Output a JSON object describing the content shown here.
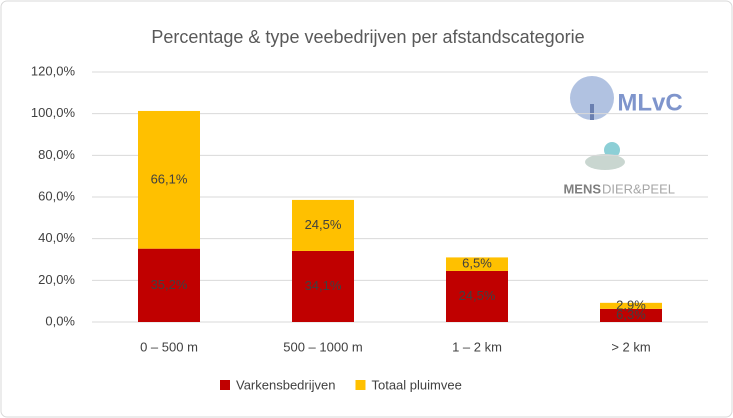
{
  "chart_data": {
    "type": "stacked_bar",
    "title": "Percentage & type veebedrijven per afstandscategorie",
    "categories": [
      "0 – 500 m",
      "500 – 1000 m",
      "1 – 2 km",
      "> 2 km"
    ],
    "series": [
      {
        "name": "Varkensbedrijven",
        "color": "#c00000",
        "values": [
          35.2,
          34.1,
          24.5,
          6.3
        ],
        "value_labels": [
          "35,2%",
          "34,1%",
          "24,5%",
          "6,3%"
        ]
      },
      {
        "name": "Totaal pluimvee",
        "color": "#ffc000",
        "values": [
          66.1,
          24.5,
          6.5,
          2.9
        ],
        "value_labels": [
          "66,1%",
          "24,5%",
          "6,5%",
          "2,9%"
        ]
      }
    ],
    "ylim": [
      0,
      120
    ],
    "yticks": [
      {
        "value": 0,
        "label": "0,0%"
      },
      {
        "value": 20,
        "label": "20,0%"
      },
      {
        "value": 40,
        "label": "40,0%"
      },
      {
        "value": 60,
        "label": "60,0%"
      },
      {
        "value": 80,
        "label": "80,0%"
      },
      {
        "value": 100,
        "label": "100,0%"
      },
      {
        "value": 120,
        "label": "120,0%"
      }
    ],
    "grid": true,
    "legend": "bottom",
    "logo": {
      "name": "MLvC",
      "subtitle_1": "MENS",
      "subtitle_2": "DIER&PEEL"
    }
  }
}
